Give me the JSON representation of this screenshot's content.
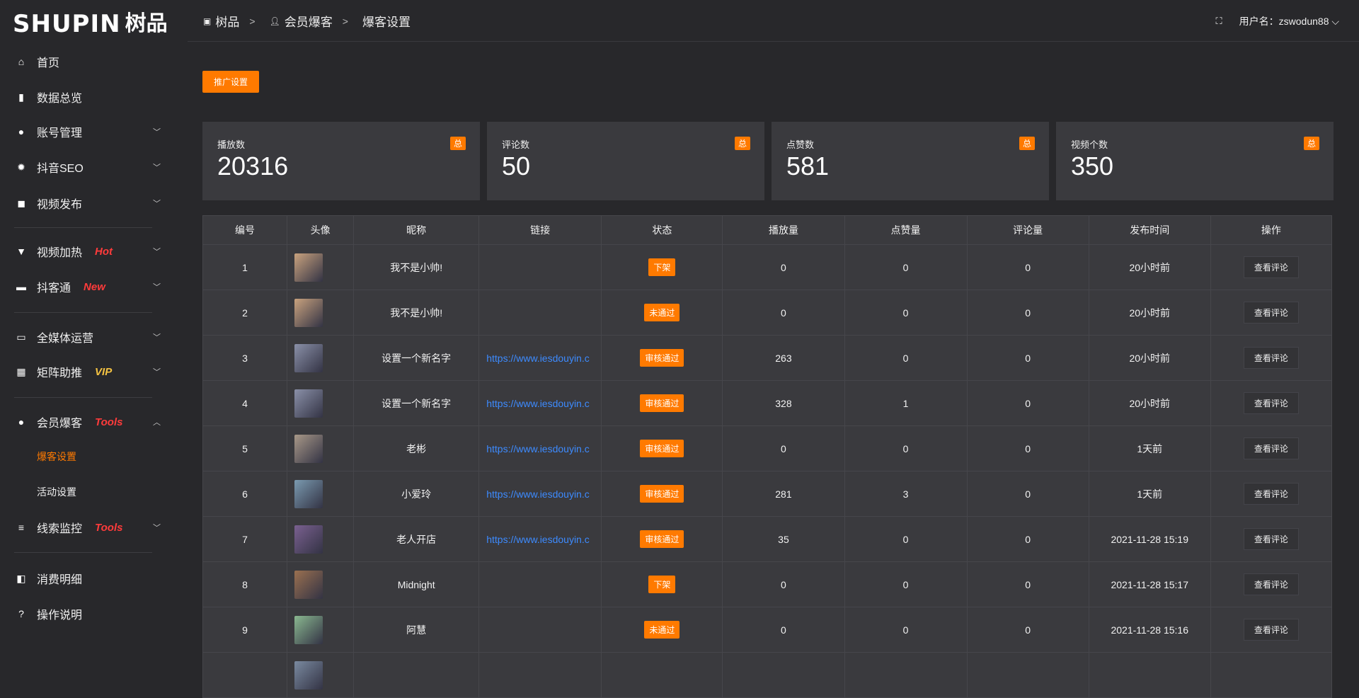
{
  "brand": {
    "en": "SHUPIN",
    "cn": "树品"
  },
  "colors": {
    "accent": "#ff7a00",
    "link": "#3d8bff",
    "hot": "#ff3b3b",
    "vip": "#f5c342"
  },
  "sidebar": {
    "items": [
      {
        "label": "首页",
        "icon": "home-icon"
      },
      {
        "label": "数据总览",
        "icon": "bar-chart-icon"
      },
      {
        "label": "账号管理",
        "icon": "user-icon",
        "chevron": "down"
      },
      {
        "label": "抖音SEO",
        "icon": "gear-icon",
        "chevron": "down"
      },
      {
        "label": "视频发布",
        "icon": "camera-icon",
        "chevron": "down"
      },
      {
        "label": "视频加热",
        "icon": "sign-icon",
        "tag": "Hot",
        "chevron": "down"
      },
      {
        "label": "抖客通",
        "icon": "chat-icon",
        "tag": "New",
        "chevron": "down"
      },
      {
        "label": "全媒体运营",
        "icon": "monitor-icon",
        "chevron": "down"
      },
      {
        "label": "矩阵助推",
        "icon": "grid-icon",
        "tag": "VIP",
        "chevron": "down"
      },
      {
        "label": "会员爆客",
        "icon": "user-icon",
        "tag": "Tools",
        "chevron": "up"
      },
      {
        "label": "爆客设置",
        "sub": true,
        "active": true
      },
      {
        "label": "活动设置",
        "sub": true
      },
      {
        "label": "线索监控",
        "icon": "sliders-icon",
        "tag": "Tools",
        "chevron": "down"
      },
      {
        "label": "消费明细",
        "icon": "wallet-icon"
      },
      {
        "label": "操作说明",
        "icon": "help-icon"
      }
    ]
  },
  "header": {
    "breadcrumb": [
      "树品",
      "会员爆客",
      "爆客设置"
    ],
    "user_label": "用户名：zswodun88"
  },
  "toolbar": {
    "promo_label": "推广设置"
  },
  "stats": [
    {
      "label": "播放数",
      "value": "20316",
      "badge": "总"
    },
    {
      "label": "评论数",
      "value": "50",
      "badge": "总"
    },
    {
      "label": "点赞数",
      "value": "581",
      "badge": "总"
    },
    {
      "label": "视频个数",
      "value": "350",
      "badge": "总"
    }
  ],
  "table": {
    "columns": [
      "编号",
      "头像",
      "昵称",
      "链接",
      "状态",
      "播放量",
      "点赞量",
      "评论量",
      "发布时间",
      "操作"
    ],
    "action_label": "查看评论",
    "rows": [
      {
        "id": "1",
        "name": "我不是小帅!",
        "link": "",
        "status": "下架",
        "plays": "0",
        "likes": "0",
        "comments": "0",
        "time": "20小时前",
        "avatar": "#c9a27e"
      },
      {
        "id": "2",
        "name": "我不是小帅!",
        "link": "",
        "status": "未通过",
        "plays": "0",
        "likes": "0",
        "comments": "0",
        "time": "20小时前",
        "avatar": "#c9a27e"
      },
      {
        "id": "3",
        "name": "设置一个新名字",
        "link": "https://www.iesdouyin.c",
        "status": "审核通过",
        "plays": "263",
        "likes": "0",
        "comments": "0",
        "time": "20小时前",
        "avatar": "#8a90a8"
      },
      {
        "id": "4",
        "name": "设置一个新名字",
        "link": "https://www.iesdouyin.c",
        "status": "审核通过",
        "plays": "328",
        "likes": "1",
        "comments": "0",
        "time": "20小时前",
        "avatar": "#8a90a8"
      },
      {
        "id": "5",
        "name": "老彬",
        "link": "https://www.iesdouyin.c",
        "status": "审核通过",
        "plays": "0",
        "likes": "0",
        "comments": "0",
        "time": "1天前",
        "avatar": "#a89888"
      },
      {
        "id": "6",
        "name": "小爱玲",
        "link": "https://www.iesdouyin.c",
        "status": "审核通过",
        "plays": "281",
        "likes": "3",
        "comments": "0",
        "time": "1天前",
        "avatar": "#7a9ab0"
      },
      {
        "id": "7",
        "name": "老人开店",
        "link": "https://www.iesdouyin.c",
        "status": "审核通过",
        "plays": "35",
        "likes": "0",
        "comments": "0",
        "time": "2021-11-28 15:19",
        "avatar": "#7a6090"
      },
      {
        "id": "8",
        "name": "Midnight",
        "link": "",
        "status": "下架",
        "plays": "0",
        "likes": "0",
        "comments": "0",
        "time": "2021-11-28 15:17",
        "avatar": "#9a7050"
      },
      {
        "id": "9",
        "name": "阿慧",
        "link": "",
        "status": "未通过",
        "plays": "0",
        "likes": "0",
        "comments": "0",
        "time": "2021-11-28 15:16",
        "avatar": "#8ab890"
      },
      {
        "id": "",
        "name": "",
        "link": "",
        "status": "",
        "plays": "",
        "likes": "",
        "comments": "",
        "time": "",
        "avatar": "#7a8aa0"
      }
    ]
  }
}
